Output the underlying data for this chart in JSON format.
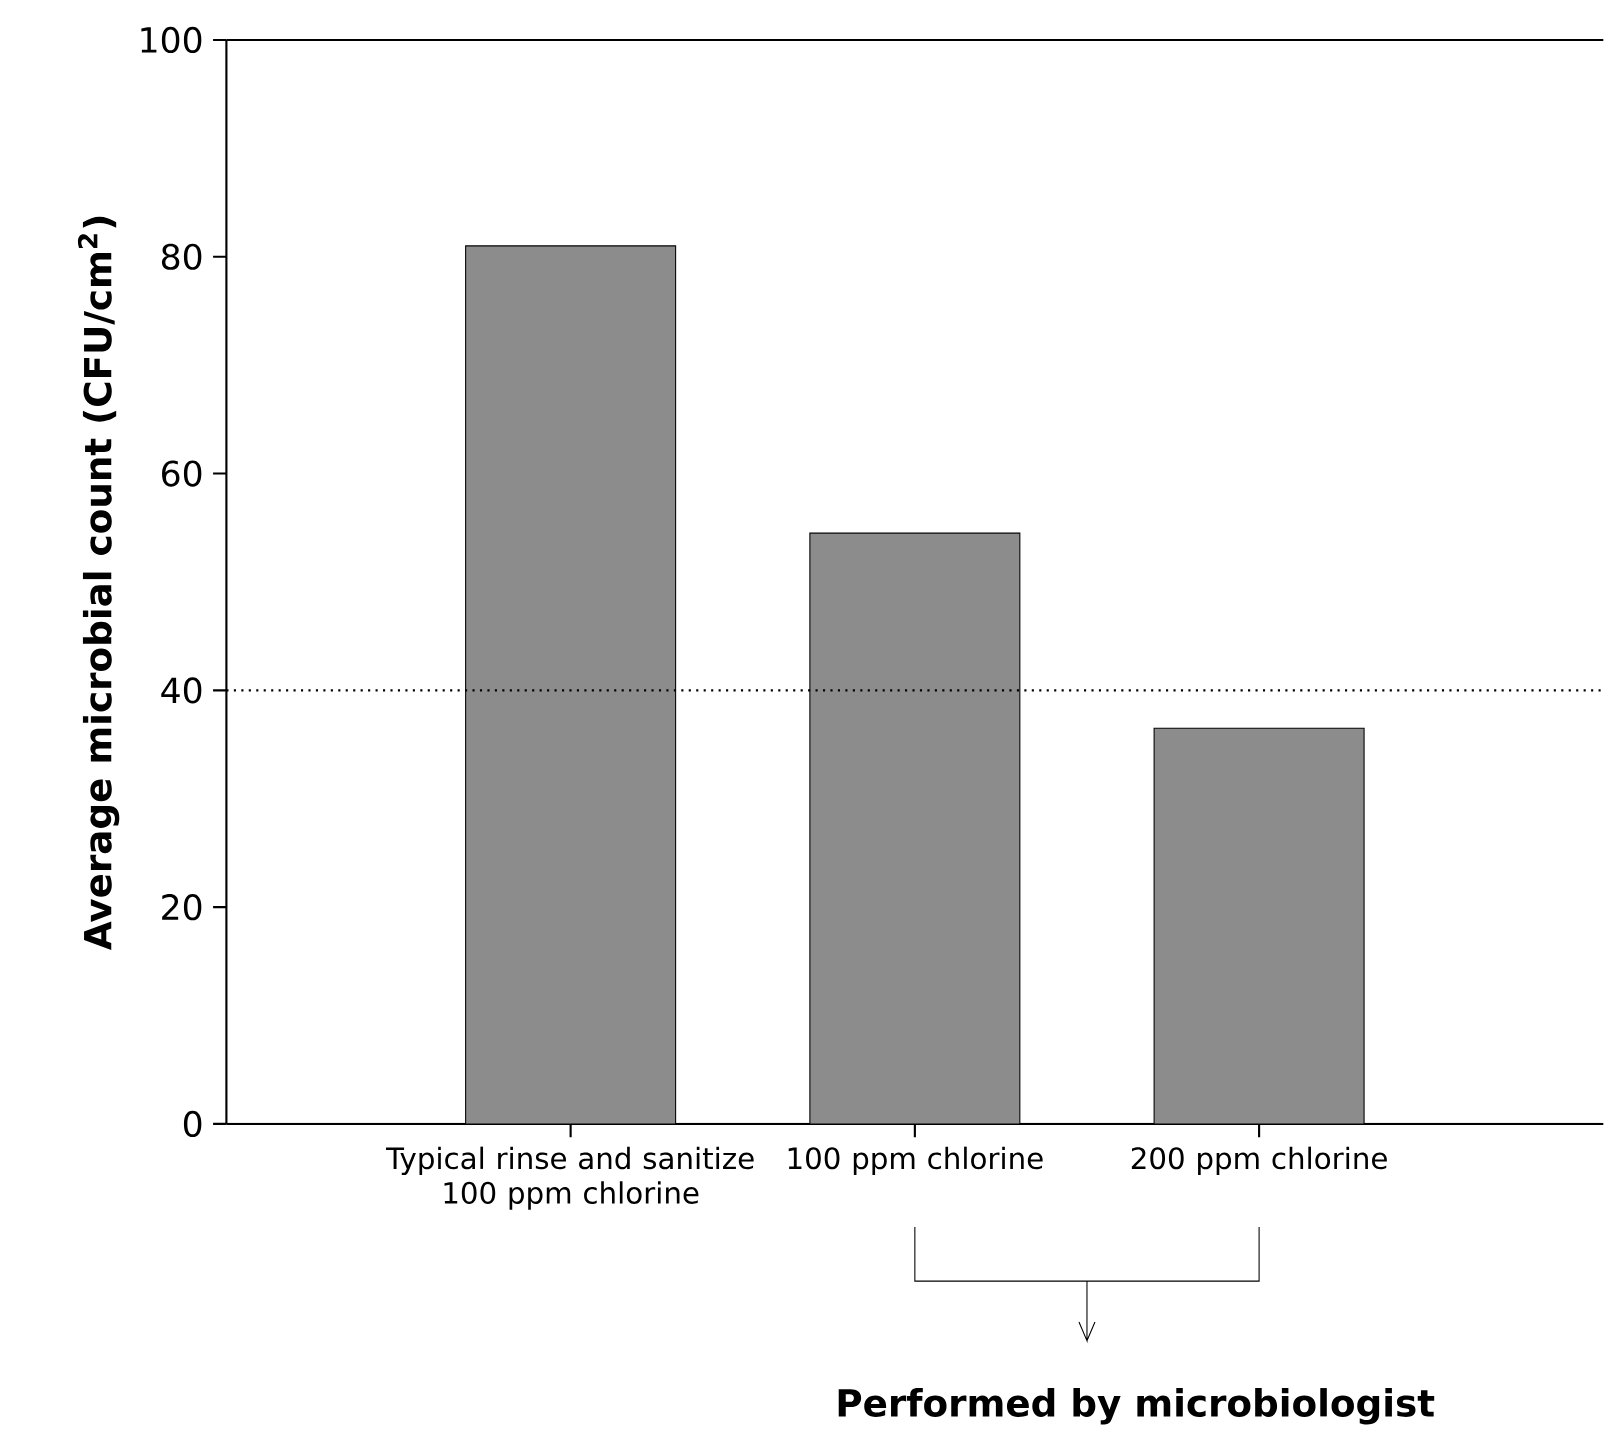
{
  "chart_data": {
    "type": "bar",
    "ylabel": "Average microbial count (CFU/cm$^{2}$)",
    "categories": [
      "Typical rinse and sanitize 100 ppm chlorine",
      "100 ppm chlorine",
      "200 ppm chlorine"
    ],
    "values": [
      81,
      54.5,
      36.5
    ],
    "color": "#8c8c8c",
    "ylim": [
      0,
      100
    ],
    "yticks": [
      0,
      20,
      40,
      60,
      80,
      100
    ],
    "ref_lines": [
      {
        "axis": "y",
        "value": 40,
        "line_style": "dotted",
        "color": "#000000"
      }
    ],
    "annotations": [
      "Performed by microbiologist"
    ]
  }
}
